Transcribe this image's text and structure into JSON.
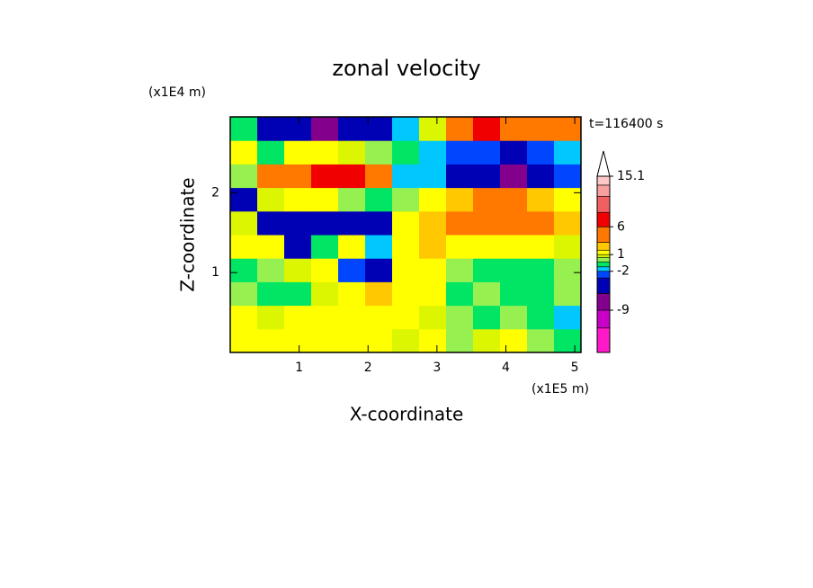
{
  "chart_data": {
    "type": "contour",
    "title": "zonal velocity",
    "y_unit": "(x1E4 m)",
    "x_unit": "(x1E5 m)",
    "xlabel": "X-coordinate",
    "ylabel": "Z-coordinate",
    "annotation": "t=116400 s",
    "xlim": [
      0,
      5.09
    ],
    "ylim": [
      0,
      2.95
    ],
    "xticks": [
      1,
      2,
      3,
      4,
      5
    ],
    "yticks": [
      1,
      2
    ],
    "field": [
      [
        1.5,
        1.5,
        1.5,
        1.5,
        1.5,
        1.2,
        0.8,
        1.2,
        0.2,
        0.8,
        1.2,
        0.2,
        -0.5
      ],
      [
        1.2,
        0.8,
        1.5,
        1.5,
        1.2,
        1.5,
        1.2,
        0.8,
        0.2,
        -0.5,
        0.2,
        -0.8,
        -1.5
      ],
      [
        0.2,
        -0.5,
        -0.8,
        0.8,
        1.2,
        1.8,
        1.5,
        1.2,
        -0.5,
        0.2,
        -0.5,
        -0.8,
        0.2
      ],
      [
        -0.5,
        0.2,
        0.8,
        1.2,
        -3,
        -5,
        1.5,
        1.2,
        0.2,
        -0.5,
        -0.8,
        -0.5,
        0.2
      ],
      [
        1.2,
        1.5,
        -4,
        -1,
        1.2,
        -2,
        1.5,
        2,
        1.5,
        1.2,
        1.5,
        1.2,
        0.8
      ],
      [
        0.8,
        -4,
        -5,
        -5,
        -5,
        -4,
        1.5,
        2.5,
        3.5,
        5,
        5,
        4,
        2.5
      ],
      [
        -4,
        0.8,
        1.5,
        1.2,
        0.2,
        -0.5,
        0.2,
        1.5,
        2.5,
        3.5,
        3.5,
        2.5,
        1.5
      ],
      [
        0.2,
        4,
        5,
        6.5,
        6.5,
        4,
        -1.5,
        -1.5,
        -5,
        -6,
        -8,
        -5,
        -3
      ],
      [
        1.2,
        -0.5,
        1.5,
        1.5,
        0.8,
        0.2,
        -0.5,
        -1.5,
        -2.5,
        -3,
        -4,
        -3,
        -1.5
      ],
      [
        -0.5,
        -4,
        -6,
        -8,
        -5,
        -4,
        -1.5,
        0.8,
        4,
        6.5,
        5,
        5,
        4
      ]
    ],
    "colorbar": {
      "clim": [
        -16.6,
        15.1
      ],
      "ticks": [
        15.1,
        6,
        1,
        -2,
        -9
      ],
      "levels": [
        -16.6,
        -12.2,
        -9,
        -6,
        -3.2,
        -2,
        -1.2,
        -0.3,
        0.5,
        1,
        1.8,
        3.2,
        6,
        8.6,
        11.5,
        13.5,
        15.1
      ],
      "colors": [
        "#ff19c8",
        "#c800c8",
        "#82008c",
        "#0000b4",
        "#0046ff",
        "#00c8ff",
        "#00e664",
        "#96f050",
        "#dcf500",
        "#ffff00",
        "#ffc800",
        "#ff7800",
        "#f00000",
        "#f06060",
        "#f8a0a0",
        "#ffc8c8"
      ]
    }
  }
}
